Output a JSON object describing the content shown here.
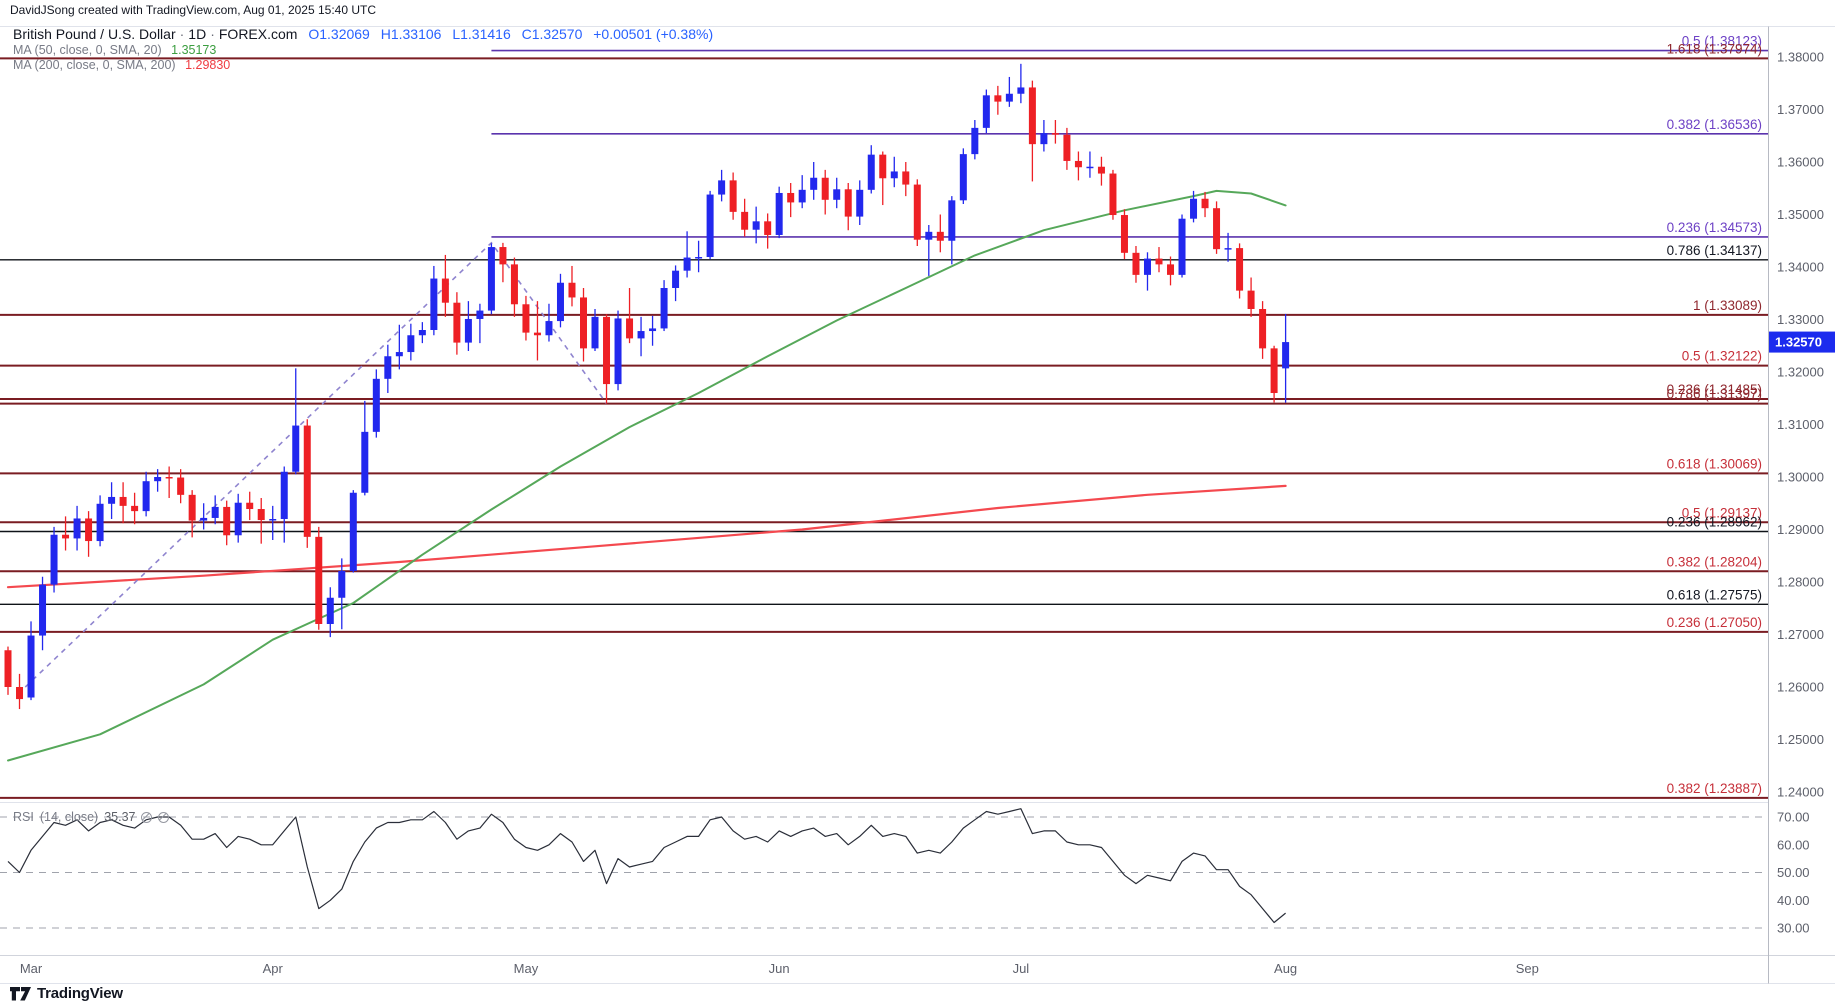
{
  "attribution": "DavidJSong created with TradingView.com, Aug 01, 2025 15:40 UTC",
  "legend": {
    "symbol": "British Pound / U.S. Dollar",
    "sep": "·",
    "timeframe": "1D",
    "exchange": "FOREX.com",
    "ohlc": {
      "o": "O1.32069",
      "h": "H1.33106",
      "l": "L1.31416",
      "c": "C1.32570",
      "change": "+0.00501 (+0.38%)"
    },
    "ma50": {
      "label": "MA (50, close, 0, SMA, 20)",
      "value": "1.35173"
    },
    "ma200": {
      "label": "MA (200, close, 0, SMA, 200)",
      "value": "1.29830"
    }
  },
  "footer": {
    "logo_text": "TradingView"
  },
  "colors": {
    "up": "#2228ee",
    "down": "#ee2025",
    "ma50_line": "#56a85a",
    "ma200_line": "#f4494f",
    "purple_line": "#5b34ad",
    "purple_label": "#6d41c5",
    "maroon_line": "#7a1c22",
    "maroon_label": "#8f272e",
    "red_label": "#c62f39",
    "black_line": "#0f1318",
    "black_label": "#131722",
    "badge_bg": "#1c2bee",
    "axis_text": "#5d606b",
    "rsi_line": "#2a2e39",
    "trendline": "#8f84cf",
    "border": "#b7bac3",
    "grid_border": "#e0e3eb"
  },
  "chart_data": {
    "type": "candlestick",
    "title": "British Pound / U.S. Dollar, 1D, FOREX.com",
    "last_price": 1.3257,
    "last_price_label": "1.32570",
    "y_axis": {
      "ticks": [
        1.38,
        1.37,
        1.36,
        1.35,
        1.34,
        1.33,
        1.32,
        1.31,
        1.3,
        1.29,
        1.28,
        1.27,
        1.26,
        1.25,
        1.24
      ]
    },
    "x_axis": {
      "months": [
        {
          "label": "Mar",
          "bar": 2
        },
        {
          "label": "Apr",
          "bar": 23
        },
        {
          "label": "May",
          "bar": 45
        },
        {
          "label": "Jun",
          "bar": 67
        },
        {
          "label": "Jul",
          "bar": 88
        },
        {
          "label": "Aug",
          "bar": 111
        },
        {
          "label": "Sep",
          "bar": 132
        }
      ]
    },
    "fib_levels": [
      {
        "ratio": "0.5",
        "price": 1.38123,
        "tone": "purple",
        "from_bar": 42
      },
      {
        "ratio": "1.618",
        "price": 1.37974,
        "tone": "maroon"
      },
      {
        "ratio": "0.382",
        "price": 1.36536,
        "tone": "purple",
        "from_bar": 42
      },
      {
        "ratio": "0.236",
        "price": 1.34573,
        "tone": "purple",
        "from_bar": 42
      },
      {
        "ratio": "0.786",
        "price": 1.34137,
        "tone": "black"
      },
      {
        "ratio": "1",
        "price": 1.33089,
        "tone": "maroon"
      },
      {
        "ratio": "0.5",
        "price": 1.32122,
        "tone": "red"
      },
      {
        "ratio": "0.236",
        "price": 1.31485,
        "tone": "maroon"
      },
      {
        "ratio": "0.786",
        "price": 1.31397,
        "tone": "maroon"
      },
      {
        "ratio": "0.618",
        "price": 1.30069,
        "tone": "red"
      },
      {
        "ratio": "0.5",
        "price": 1.29137,
        "tone": "red"
      },
      {
        "ratio": "0.236",
        "price": 1.28962,
        "tone": "black"
      },
      {
        "ratio": "0.382",
        "price": 1.28204,
        "tone": "red"
      },
      {
        "ratio": "0.618",
        "price": 1.27575,
        "tone": "black"
      },
      {
        "ratio": "0.236",
        "price": 1.2705,
        "tone": "red"
      },
      {
        "ratio": "0.382",
        "price": 1.23887,
        "tone": "red"
      }
    ],
    "trendline_points": [
      [
        1.5,
        1.26
      ],
      [
        42,
        1.3446
      ],
      [
        52,
        1.314
      ]
    ],
    "ma50_points": [
      [
        0,
        1.246
      ],
      [
        8,
        1.251
      ],
      [
        17,
        1.2605
      ],
      [
        23,
        1.269
      ],
      [
        30,
        1.276
      ],
      [
        36,
        1.2852
      ],
      [
        42,
        1.2938
      ],
      [
        48,
        1.302
      ],
      [
        54,
        1.3095
      ],
      [
        60,
        1.316
      ],
      [
        66,
        1.323
      ],
      [
        72,
        1.3298
      ],
      [
        78,
        1.336
      ],
      [
        84,
        1.3422
      ],
      [
        90,
        1.347
      ],
      [
        97,
        1.3508
      ],
      [
        103,
        1.3535
      ],
      [
        105,
        1.3545
      ],
      [
        108,
        1.354
      ],
      [
        111,
        1.35173
      ]
    ],
    "ma200_points": [
      [
        0,
        1.279
      ],
      [
        17,
        1.2812
      ],
      [
        34,
        1.2838
      ],
      [
        51,
        1.2868
      ],
      [
        69,
        1.29
      ],
      [
        86,
        1.2941
      ],
      [
        99,
        1.2966
      ],
      [
        111,
        1.2983
      ]
    ],
    "candles": [
      [
        1.267,
        1.2677,
        1.2585,
        1.26
      ],
      [
        1.26,
        1.2625,
        1.2558,
        1.2577
      ],
      [
        1.258,
        1.2725,
        1.2575,
        1.2698
      ],
      [
        1.2698,
        1.281,
        1.267,
        1.2795
      ],
      [
        1.2795,
        1.2905,
        1.278,
        1.289
      ],
      [
        1.289,
        1.2925,
        1.286,
        1.2883
      ],
      [
        1.2883,
        1.2945,
        1.286,
        1.2921
      ],
      [
        1.2921,
        1.2935,
        1.2848,
        1.2878
      ],
      [
        1.2878,
        1.2965,
        1.2868,
        1.2949
      ],
      [
        1.2949,
        1.299,
        1.292,
        1.2962
      ],
      [
        1.2962,
        1.299,
        1.2912,
        1.2945
      ],
      [
        1.2945,
        1.297,
        1.291,
        1.2935
      ],
      [
        1.2935,
        1.301,
        1.2925,
        1.2992
      ],
      [
        1.2992,
        1.3015,
        1.2972,
        1.3
      ],
      [
        1.3,
        1.302,
        1.296,
        1.2999
      ],
      [
        1.2999,
        1.3015,
        1.295,
        1.2966
      ],
      [
        1.2966,
        1.2975,
        1.2885,
        1.2917
      ],
      [
        1.2917,
        1.295,
        1.29,
        1.2922
      ],
      [
        1.2922,
        1.2965,
        1.291,
        1.2943
      ],
      [
        1.2943,
        1.2955,
        1.287,
        1.2889
      ],
      [
        1.2889,
        1.2968,
        1.2875,
        1.2951
      ],
      [
        1.2951,
        1.2972,
        1.2918,
        1.2939
      ],
      [
        1.2939,
        1.296,
        1.2873,
        1.2918
      ],
      [
        1.2918,
        1.2945,
        1.288,
        1.292
      ],
      [
        1.292,
        1.302,
        1.2875,
        1.301
      ],
      [
        1.301,
        1.3207,
        1.3005,
        1.3098
      ],
      [
        1.3098,
        1.311,
        1.2865,
        1.2886
      ],
      [
        1.2886,
        1.2905,
        1.2709,
        1.272
      ],
      [
        1.272,
        1.279,
        1.2695,
        1.277
      ],
      [
        1.277,
        1.2845,
        1.271,
        1.2821
      ],
      [
        1.2821,
        1.2975,
        1.2818,
        1.297
      ],
      [
        1.297,
        1.3145,
        1.2965,
        1.3086
      ],
      [
        1.3086,
        1.3205,
        1.3075,
        1.3187
      ],
      [
        1.3187,
        1.3252,
        1.316,
        1.323
      ],
      [
        1.323,
        1.329,
        1.3205,
        1.3238
      ],
      [
        1.3238,
        1.3292,
        1.3222,
        1.327
      ],
      [
        1.327,
        1.3295,
        1.3255,
        1.328
      ],
      [
        1.328,
        1.3402,
        1.327,
        1.3378
      ],
      [
        1.3378,
        1.3423,
        1.3305,
        1.3332
      ],
      [
        1.3332,
        1.3352,
        1.3233,
        1.3256
      ],
      [
        1.3256,
        1.3335,
        1.324,
        1.3301
      ],
      [
        1.3301,
        1.333,
        1.3255,
        1.3317
      ],
      [
        1.3317,
        1.3445,
        1.331,
        1.3438
      ],
      [
        1.3438,
        1.3446,
        1.3371,
        1.3405
      ],
      [
        1.3405,
        1.3418,
        1.3305,
        1.3329
      ],
      [
        1.3329,
        1.3345,
        1.326,
        1.3275
      ],
      [
        1.3275,
        1.3335,
        1.3222,
        1.327
      ],
      [
        1.327,
        1.333,
        1.3258,
        1.3297
      ],
      [
        1.3297,
        1.3387,
        1.3285,
        1.337
      ],
      [
        1.337,
        1.3402,
        1.3325,
        1.3342
      ],
      [
        1.3342,
        1.336,
        1.322,
        1.3245
      ],
      [
        1.3245,
        1.332,
        1.324,
        1.3305
      ],
      [
        1.3305,
        1.331,
        1.314,
        1.3177
      ],
      [
        1.3177,
        1.3317,
        1.3165,
        1.3302
      ],
      [
        1.3302,
        1.336,
        1.3255,
        1.3264
      ],
      [
        1.3264,
        1.3305,
        1.323,
        1.3278
      ],
      [
        1.3278,
        1.3307,
        1.325,
        1.3283
      ],
      [
        1.3283,
        1.3375,
        1.3278,
        1.336
      ],
      [
        1.336,
        1.3403,
        1.3335,
        1.3393
      ],
      [
        1.3393,
        1.3468,
        1.338,
        1.3418
      ],
      [
        1.3418,
        1.345,
        1.339,
        1.3419
      ],
      [
        1.3419,
        1.3545,
        1.3415,
        1.3538
      ],
      [
        1.3538,
        1.3585,
        1.3525,
        1.3565
      ],
      [
        1.3565,
        1.358,
        1.349,
        1.3505
      ],
      [
        1.3505,
        1.353,
        1.3458,
        1.3471
      ],
      [
        1.3471,
        1.3515,
        1.3445,
        1.3487
      ],
      [
        1.3487,
        1.3502,
        1.3435,
        1.3461
      ],
      [
        1.3461,
        1.3553,
        1.3455,
        1.3541
      ],
      [
        1.3541,
        1.356,
        1.3495,
        1.3523
      ],
      [
        1.3523,
        1.3575,
        1.3512,
        1.3547
      ],
      [
        1.3547,
        1.36,
        1.3528,
        1.357
      ],
      [
        1.357,
        1.3585,
        1.35,
        1.3528
      ],
      [
        1.3528,
        1.357,
        1.3512,
        1.3548
      ],
      [
        1.3548,
        1.356,
        1.347,
        1.3496
      ],
      [
        1.3496,
        1.3565,
        1.348,
        1.3547
      ],
      [
        1.3547,
        1.3632,
        1.354,
        1.3614
      ],
      [
        1.3614,
        1.362,
        1.3518,
        1.3569
      ],
      [
        1.3569,
        1.361,
        1.3552,
        1.3582
      ],
      [
        1.3582,
        1.36,
        1.3535,
        1.3557
      ],
      [
        1.3557,
        1.3567,
        1.344,
        1.3452
      ],
      [
        1.3452,
        1.348,
        1.3383,
        1.3467
      ],
      [
        1.3467,
        1.35,
        1.3428,
        1.345
      ],
      [
        1.345,
        1.3535,
        1.3405,
        1.3527
      ],
      [
        1.3527,
        1.3626,
        1.352,
        1.3615
      ],
      [
        1.3615,
        1.368,
        1.3605,
        1.3665
      ],
      [
        1.3665,
        1.3738,
        1.3655,
        1.3727
      ],
      [
        1.3727,
        1.3745,
        1.369,
        1.3715
      ],
      [
        1.3715,
        1.3762,
        1.3705,
        1.373
      ],
      [
        1.373,
        1.3787,
        1.3712,
        1.3742
      ],
      [
        1.3742,
        1.3755,
        1.3563,
        1.3634
      ],
      [
        1.3634,
        1.368,
        1.362,
        1.3655
      ],
      [
        1.3655,
        1.368,
        1.3635,
        1.3652
      ],
      [
        1.3652,
        1.3665,
        1.3585,
        1.3602
      ],
      [
        1.3602,
        1.362,
        1.3565,
        1.359
      ],
      [
        1.359,
        1.362,
        1.357,
        1.3591
      ],
      [
        1.3591,
        1.361,
        1.3555,
        1.3578
      ],
      [
        1.3578,
        1.3585,
        1.349,
        1.3499
      ],
      [
        1.3499,
        1.351,
        1.3415,
        1.3427
      ],
      [
        1.3427,
        1.344,
        1.337,
        1.3385
      ],
      [
        1.3385,
        1.3428,
        1.3355,
        1.3416
      ],
      [
        1.3416,
        1.3438,
        1.339,
        1.3405
      ],
      [
        1.3405,
        1.342,
        1.3365,
        1.3385
      ],
      [
        1.3385,
        1.35,
        1.338,
        1.3492
      ],
      [
        1.3492,
        1.3545,
        1.3485,
        1.353
      ],
      [
        1.353,
        1.3543,
        1.3495,
        1.3512
      ],
      [
        1.3512,
        1.3525,
        1.3425,
        1.3434
      ],
      [
        1.3434,
        1.3465,
        1.341,
        1.3436
      ],
      [
        1.3436,
        1.3445,
        1.334,
        1.3355
      ],
      [
        1.3355,
        1.338,
        1.3305,
        1.332
      ],
      [
        1.332,
        1.3335,
        1.3225,
        1.3245
      ],
      [
        1.3245,
        1.325,
        1.3142,
        1.316
      ],
      [
        1.32069,
        1.33106,
        1.31416,
        1.3257
      ]
    ],
    "rsi": {
      "title": "RSI",
      "params": "(14, close)",
      "value": "35.37",
      "levels": [
        70,
        50,
        30
      ],
      "ticks": [
        70,
        60,
        50,
        40,
        30
      ],
      "values": [
        54,
        50,
        58,
        63,
        68,
        67,
        69,
        65,
        68,
        69,
        67,
        66,
        69,
        70,
        70,
        67,
        62,
        62,
        64,
        59,
        63,
        62,
        60,
        60,
        65,
        70,
        52,
        37,
        40,
        44,
        54,
        61,
        66,
        68,
        68,
        69,
        69,
        72,
        68,
        62,
        65,
        66,
        71,
        68,
        62,
        59,
        58,
        60,
        64,
        61,
        54,
        58,
        46,
        55,
        52,
        53,
        54,
        59,
        61,
        63,
        63,
        69,
        70,
        65,
        62,
        63,
        61,
        65,
        63,
        65,
        66,
        63,
        64,
        60,
        63,
        67,
        63,
        64,
        63,
        57,
        58,
        57,
        61,
        66,
        69,
        72,
        71,
        72,
        73,
        64,
        65,
        65,
        61,
        60,
        60,
        59,
        54,
        49,
        46,
        49,
        48,
        47,
        54,
        57,
        56,
        51,
        51,
        45,
        42,
        37,
        32,
        35.37
      ]
    }
  }
}
